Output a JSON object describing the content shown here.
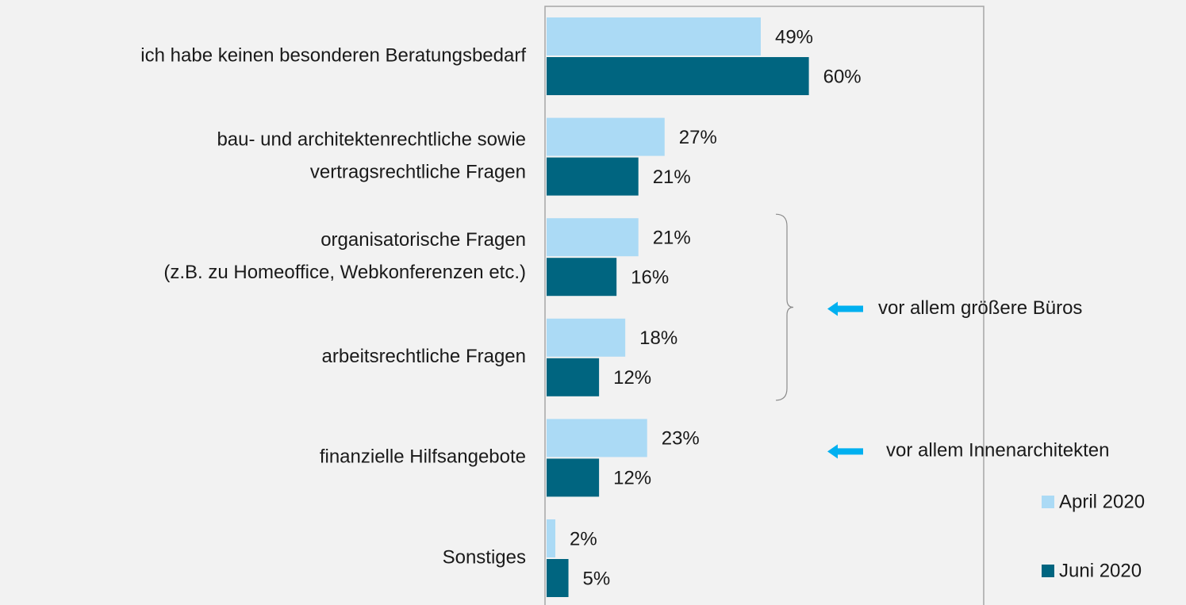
{
  "chart_data": {
    "type": "hbar",
    "categories": [
      [
        "ich habe keinen besonderen Beratungsbedarf"
      ],
      [
        "bau- und architektenrechtliche sowie",
        "vertragsrechtliche Fragen"
      ],
      [
        "organisatorische Fragen",
        "(z.B. zu Homeoffice, Webkonferenzen etc.)"
      ],
      [
        "arbeitsrechtliche Fragen"
      ],
      [
        "finanzielle Hilfsangebote"
      ],
      [
        "Sonstiges"
      ]
    ],
    "series": [
      {
        "name": "April 2020",
        "color": "#abdaf5",
        "values": [
          49,
          27,
          21,
          18,
          23,
          2
        ],
        "value_labels": [
          "49%",
          "27%",
          "21%",
          "18%",
          "23%",
          "2%"
        ]
      },
      {
        "name": "Juni 2020",
        "color": "#006580",
        "values": [
          60,
          21,
          16,
          12,
          12,
          5
        ],
        "value_labels": [
          "60%",
          "21%",
          "16%",
          "12%",
          "12%",
          "5%"
        ]
      }
    ],
    "xlim": [
      0,
      100
    ],
    "legend": "lower right",
    "annotations": [
      {
        "text": "vor allem größere Büros",
        "categories": [
          2,
          3
        ]
      },
      {
        "text": "vor allem Innenarchitekten",
        "categories": [
          4
        ]
      }
    ]
  }
}
